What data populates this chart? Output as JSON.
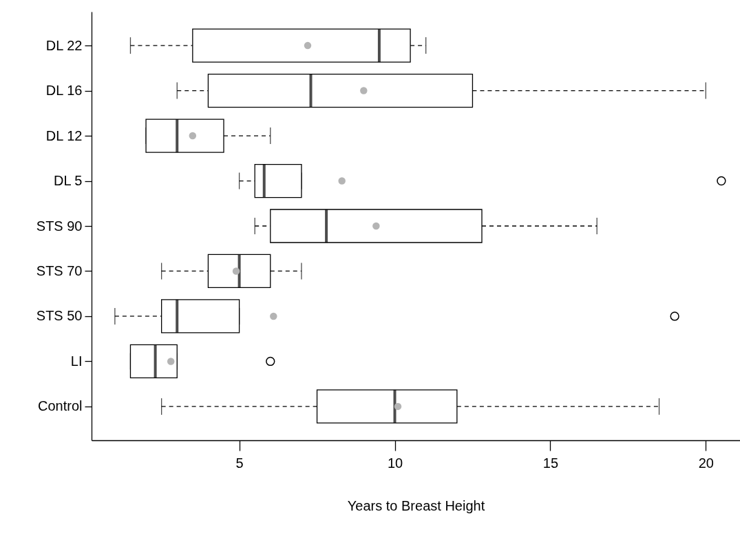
{
  "chart_data": {
    "type": "box",
    "orientation": "horizontal",
    "xlabel": "Years to Breast Height",
    "categories": [
      "DL 22",
      "DL 16",
      "DL 12",
      "DL 5",
      "STS 90",
      "STS 70",
      "STS 50",
      "LI",
      "Control"
    ],
    "boxes": [
      {
        "low": 1.5,
        "q1": 3.5,
        "median": 9.5,
        "q3": 10.5,
        "high": 11,
        "mean": 7.2
      },
      {
        "low": 3,
        "q1": 4,
        "median": 7.3,
        "q3": 12.5,
        "high": 20,
        "mean": 9
      },
      {
        "low": 2,
        "q1": 2,
        "median": 3,
        "q3": 4.5,
        "high": 6,
        "mean": 3.5
      },
      {
        "low": 5,
        "q1": 5.5,
        "median": 5.8,
        "q3": 7,
        "high": 7,
        "mean": 8.3,
        "outliers": [
          20.5
        ]
      },
      {
        "low": 5.5,
        "q1": 6,
        "median": 7.8,
        "q3": 12.8,
        "high": 16.5,
        "mean": 9.4
      },
      {
        "low": 2.5,
        "q1": 4,
        "median": 5,
        "q3": 6,
        "high": 7,
        "mean": 4.9
      },
      {
        "low": 1,
        "q1": 2.5,
        "median": 3,
        "q3": 5,
        "high": 5,
        "mean": 6.1,
        "outliers": [
          19
        ]
      },
      {
        "low": 1.5,
        "q1": 1.5,
        "median": 2.3,
        "q3": 3,
        "high": 3,
        "mean": 2.8,
        "outliers": [
          6
        ]
      },
      {
        "low": 2.5,
        "q1": 7.5,
        "median": 10,
        "q3": 12,
        "high": 18.5,
        "mean": 10.1
      }
    ],
    "xlim": [
      0.25,
      21.1
    ],
    "xticks": [
      5,
      10,
      15,
      20
    ]
  }
}
